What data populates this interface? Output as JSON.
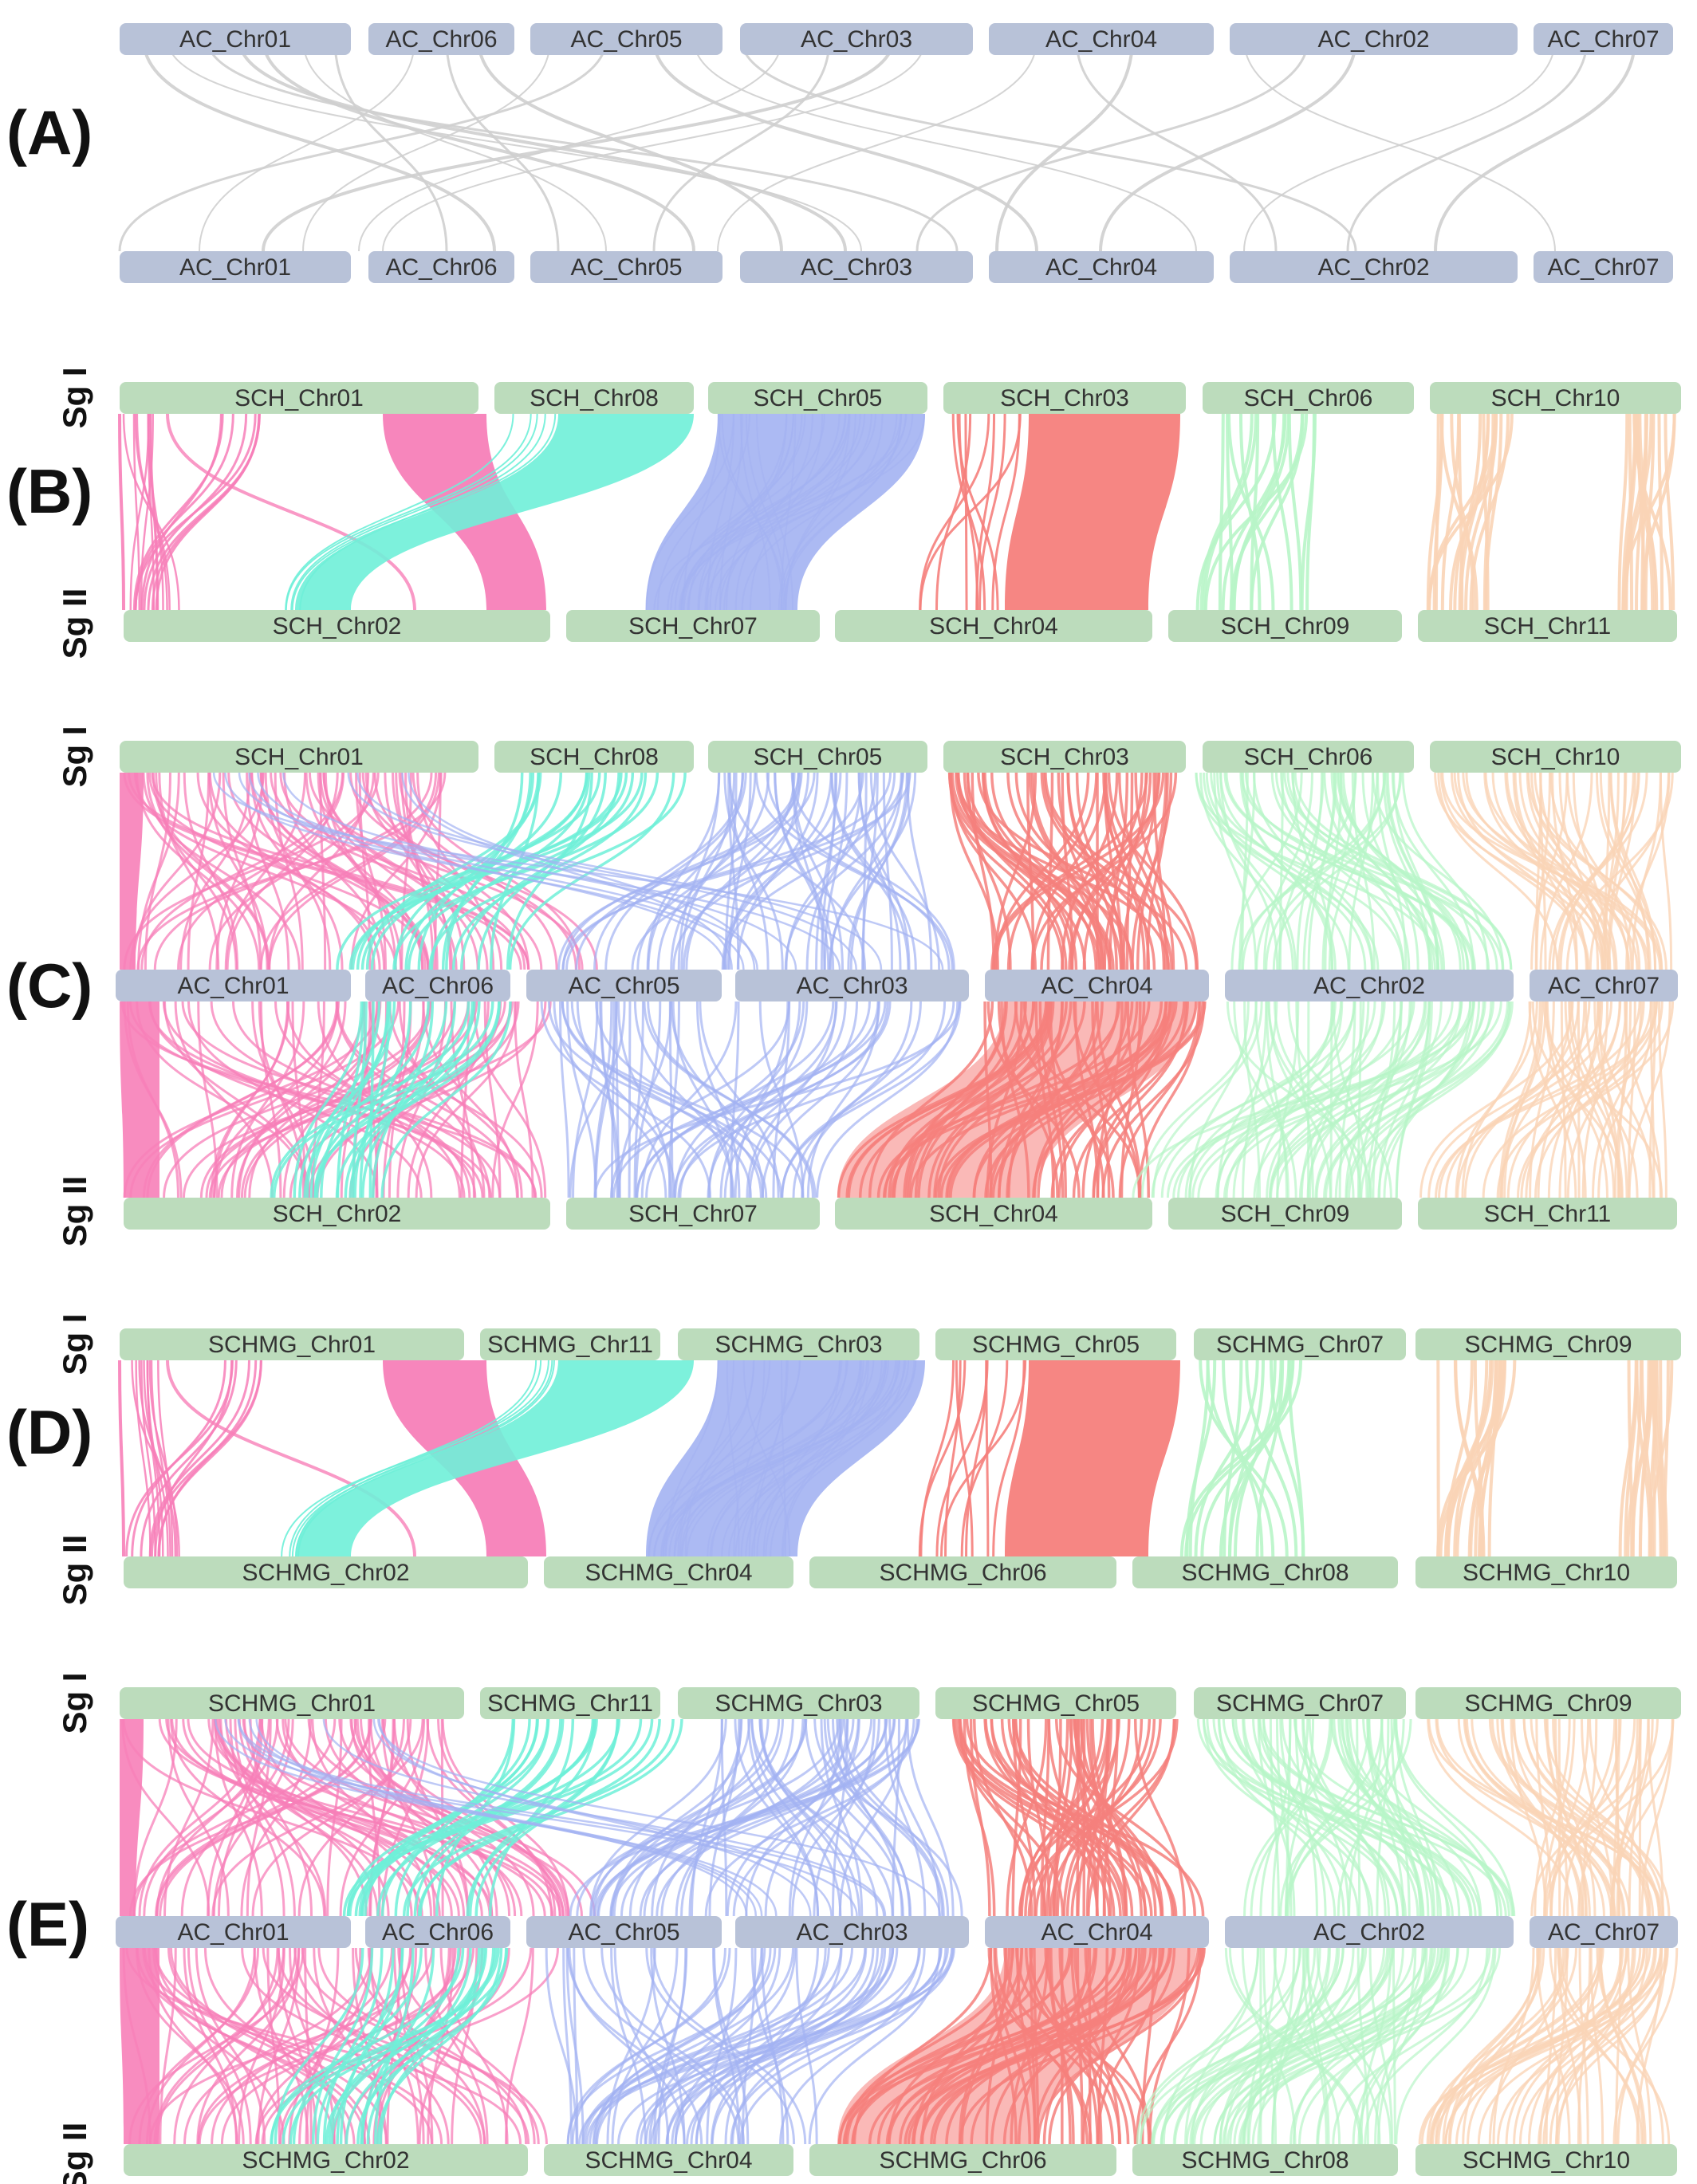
{
  "colors": {
    "ac_bar": "#b8c2d8",
    "sg_bar": "#bcdcbc",
    "grey_link": "#cfcfcf",
    "pink": "#f77fb8",
    "cyan": "#6ff0d8",
    "blue": "#a3b2f2",
    "red": "#f5807c",
    "light_green": "#b8f5c8",
    "peach": "#fad4b6"
  },
  "panels": [
    {
      "label": "(A)",
      "rows": [
        {
          "role": "",
          "chromosomes": [
            "AC_Chr01",
            "AC_Chr06",
            "AC_Chr05",
            "AC_Chr03",
            "AC_Chr04",
            "AC_Chr02",
            "AC_Chr07"
          ]
        },
        {
          "role": "",
          "chromosomes": [
            "AC_Chr01",
            "AC_Chr06",
            "AC_Chr05",
            "AC_Chr03",
            "AC_Chr04",
            "AC_Chr02",
            "AC_Chr07"
          ]
        }
      ]
    },
    {
      "label": "(B)",
      "rows": [
        {
          "role": "Sg I",
          "chromosomes": [
            "SCH_Chr01",
            "SCH_Chr08",
            "SCH_Chr05",
            "SCH_Chr03",
            "SCH_Chr06",
            "SCH_Chr10"
          ]
        },
        {
          "role": "Sg II",
          "chromosomes": [
            "SCH_Chr02",
            "SCH_Chr07",
            "SCH_Chr04",
            "SCH_Chr09",
            "SCH_Chr11"
          ]
        }
      ]
    },
    {
      "label": "(C)",
      "rows": [
        {
          "role": "Sg I",
          "chromosomes": [
            "SCH_Chr01",
            "SCH_Chr08",
            "SCH_Chr05",
            "SCH_Chr03",
            "SCH_Chr06",
            "SCH_Chr10"
          ]
        },
        {
          "role": "",
          "chromosomes": [
            "AC_Chr01",
            "AC_Chr06",
            "AC_Chr05",
            "AC_Chr03",
            "AC_Chr04",
            "AC_Chr02",
            "AC_Chr07"
          ]
        },
        {
          "role": "Sg II",
          "chromosomes": [
            "SCH_Chr02",
            "SCH_Chr07",
            "SCH_Chr04",
            "SCH_Chr09",
            "SCH_Chr11"
          ]
        }
      ]
    },
    {
      "label": "(D)",
      "rows": [
        {
          "role": "Sg I",
          "chromosomes": [
            "SCHMG_Chr01",
            "SCHMG_Chr11",
            "SCHMG_Chr03",
            "SCHMG_Chr05",
            "SCHMG_Chr07",
            "SCHMG_Chr09"
          ]
        },
        {
          "role": "Sg II",
          "chromosomes": [
            "SCHMG_Chr02",
            "SCHMG_Chr04",
            "SCHMG_Chr06",
            "SCHMG_Chr08",
            "SCHMG_Chr10"
          ]
        }
      ]
    },
    {
      "label": "(E)",
      "rows": [
        {
          "role": "Sg I",
          "chromosomes": [
            "SCHMG_Chr01",
            "SCHMG_Chr11",
            "SCHMG_Chr03",
            "SCHMG_Chr05",
            "SCHMG_Chr07",
            "SCHMG_Chr09"
          ]
        },
        {
          "role": "",
          "chromosomes": [
            "AC_Chr01",
            "AC_Chr06",
            "AC_Chr05",
            "AC_Chr03",
            "AC_Chr04",
            "AC_Chr02",
            "AC_Chr07"
          ]
        },
        {
          "role": "Sg II",
          "chromosomes": [
            "SCHMG_Chr02",
            "SCHMG_Chr04",
            "SCHMG_Chr06",
            "SCHMG_Chr08",
            "SCHMG_Chr10"
          ]
        }
      ]
    }
  ]
}
